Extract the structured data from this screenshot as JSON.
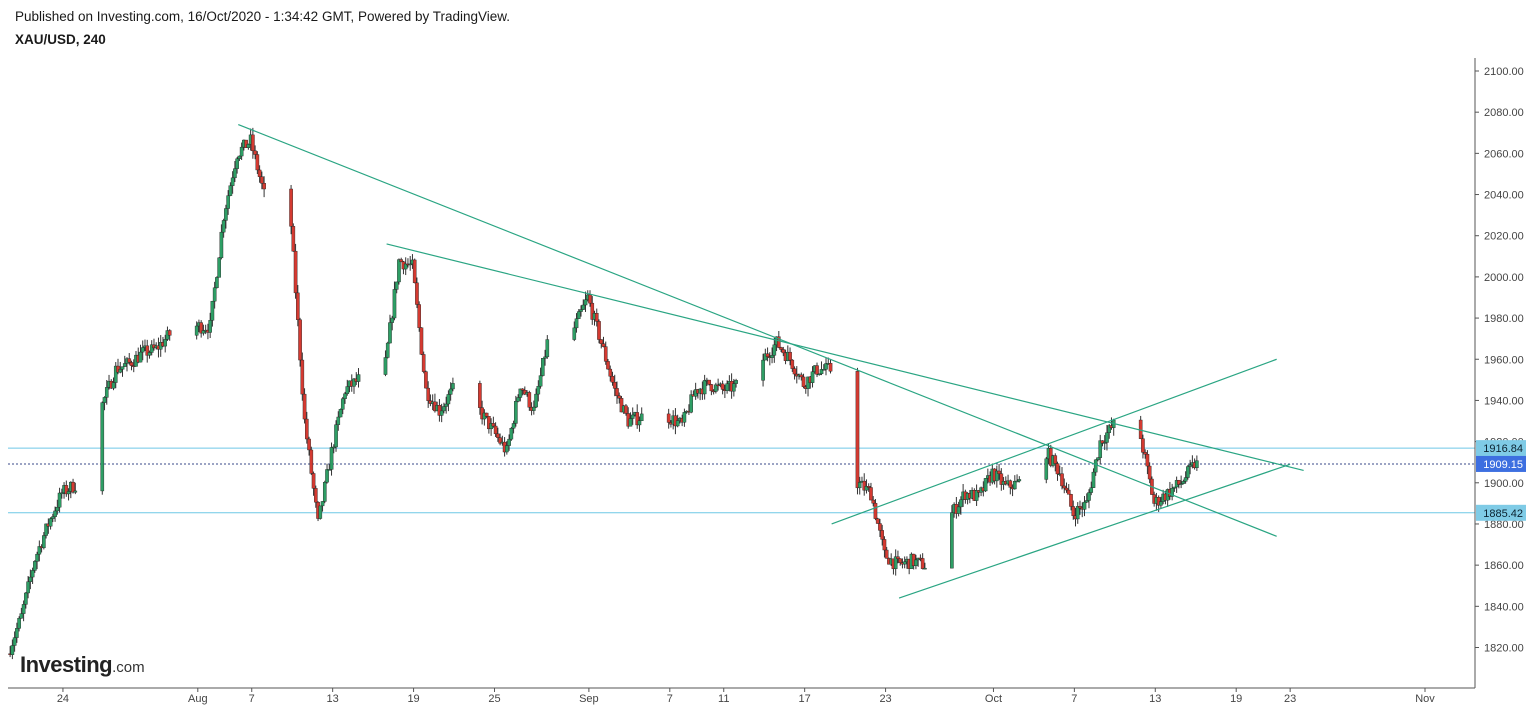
{
  "header": {
    "published_text": "Published on Investing.com, 16/Oct/2020 - 1:34:42 GMT, Powered by TradingView.",
    "symbol_label": "XAU/USD, 240"
  },
  "logo": {
    "brand": "Investing",
    "suffix": ".com"
  },
  "colors": {
    "up_candle": "#2e9e65",
    "down_candle": "#d43a31",
    "wick": "#333333",
    "trendline": "#2aa583",
    "horizontal_level": "#6fc8e6",
    "last_price_tag": "#3d6fe0",
    "level_tag": "#7fcbe6",
    "axis": "#555555"
  },
  "chart_data": {
    "type": "candlestick",
    "title": "XAU/USD, 240",
    "xlabel": "",
    "ylabel": "",
    "ylim": [
      1800,
      2105
    ],
    "x_range": [
      "2020-07-20",
      "2020-11-02"
    ],
    "y_ticks": [
      "1820.00",
      "1840.00",
      "1860.00",
      "1880.00",
      "1900.00",
      "1920.00",
      "1940.00",
      "1960.00",
      "1980.00",
      "2000.00",
      "2020.00",
      "2040.00",
      "2060.00",
      "2080.00",
      "2100.00"
    ],
    "x_ticks": [
      {
        "label": "24",
        "date": "2020-07-24"
      },
      {
        "label": "Aug",
        "date": "2020-08-03"
      },
      {
        "label": "7",
        "date": "2020-08-07"
      },
      {
        "label": "13",
        "date": "2020-08-13"
      },
      {
        "label": "19",
        "date": "2020-08-19"
      },
      {
        "label": "25",
        "date": "2020-08-25"
      },
      {
        "label": "Sep",
        "date": "2020-09-01"
      },
      {
        "label": "7",
        "date": "2020-09-07"
      },
      {
        "label": "11",
        "date": "2020-09-11"
      },
      {
        "label": "17",
        "date": "2020-09-17"
      },
      {
        "label": "23",
        "date": "2020-09-23"
      },
      {
        "label": "Oct",
        "date": "2020-10-01"
      },
      {
        "label": "7",
        "date": "2020-10-07"
      },
      {
        "label": "13",
        "date": "2020-10-13"
      },
      {
        "label": "19",
        "date": "2020-10-19"
      },
      {
        "label": "23",
        "date": "2020-10-23"
      },
      {
        "label": "Nov",
        "date": "2020-11-02"
      }
    ],
    "anchors": [
      [
        "2020-07-20",
        1817
      ],
      [
        "2020-07-21",
        1835
      ],
      [
        "2020-07-22",
        1863
      ],
      [
        "2020-07-23",
        1880
      ],
      [
        "2020-07-24",
        1895
      ],
      [
        "2020-07-25",
        1899
      ],
      [
        "2020-07-27",
        1938
      ],
      [
        "2020-07-28",
        1955
      ],
      [
        "2020-07-29",
        1958
      ],
      [
        "2020-07-30",
        1963
      ],
      [
        "2020-07-31",
        1965
      ],
      [
        "2020-08-01",
        1972
      ],
      [
        "2020-08-03",
        1976
      ],
      [
        "2020-08-04",
        1976
      ],
      [
        "2020-08-05",
        2030
      ],
      [
        "2020-08-06",
        2060
      ],
      [
        "2020-08-07",
        2066
      ],
      [
        "2020-08-08",
        2040
      ],
      [
        "2020-08-09",
        2032
      ],
      [
        "2020-08-10",
        2025
      ],
      [
        "2020-08-11",
        1930
      ],
      [
        "2020-08-12",
        1880
      ],
      [
        "2020-08-13",
        1915
      ],
      [
        "2020-08-14",
        1945
      ],
      [
        "2020-08-15",
        1950
      ],
      [
        "2020-08-17",
        1958
      ],
      [
        "2020-08-18",
        2008
      ],
      [
        "2020-08-19",
        2005
      ],
      [
        "2020-08-20",
        1945
      ],
      [
        "2020-08-21",
        1935
      ],
      [
        "2020-08-22",
        1945
      ],
      [
        "2020-08-24",
        1935
      ],
      [
        "2020-08-25",
        1925
      ],
      [
        "2020-08-26",
        1915
      ],
      [
        "2020-08-27",
        1948
      ],
      [
        "2020-08-28",
        1935
      ],
      [
        "2020-08-29",
        1968
      ],
      [
        "2020-08-31",
        1975
      ],
      [
        "2020-09-01",
        1990
      ],
      [
        "2020-09-02",
        1968
      ],
      [
        "2020-09-03",
        1945
      ],
      [
        "2020-09-04",
        1930
      ],
      [
        "2020-09-05",
        1932
      ],
      [
        "2020-09-07",
        1932
      ],
      [
        "2020-09-08",
        1928
      ],
      [
        "2020-09-09",
        1945
      ],
      [
        "2020-09-10",
        1948
      ],
      [
        "2020-09-11",
        1945
      ],
      [
        "2020-09-12",
        1947
      ],
      [
        "2020-09-14",
        1960
      ],
      [
        "2020-09-15",
        1968
      ],
      [
        "2020-09-16",
        1960
      ],
      [
        "2020-09-17",
        1948
      ],
      [
        "2020-09-18",
        1955
      ],
      [
        "2020-09-19",
        1955
      ],
      [
        "2020-09-21",
        1900
      ],
      [
        "2020-09-22",
        1895
      ],
      [
        "2020-09-23",
        1865
      ],
      [
        "2020-09-24",
        1860
      ],
      [
        "2020-09-25",
        1862
      ],
      [
        "2020-09-26",
        1860
      ],
      [
        "2020-09-28",
        1885
      ],
      [
        "2020-09-29",
        1895
      ],
      [
        "2020-09-30",
        1893
      ],
      [
        "2020-10-01",
        1905
      ],
      [
        "2020-10-02",
        1898
      ],
      [
        "2020-10-03",
        1900
      ],
      [
        "2020-10-05",
        1915
      ],
      [
        "2020-10-06",
        1905
      ],
      [
        "2020-10-07",
        1885
      ],
      [
        "2020-10-08",
        1890
      ],
      [
        "2020-10-09",
        1920
      ],
      [
        "2020-10-10",
        1928
      ],
      [
        "2020-10-12",
        1922
      ],
      [
        "2020-10-13",
        1890
      ],
      [
        "2020-10-14",
        1895
      ],
      [
        "2020-10-15",
        1900
      ],
      [
        "2020-10-16",
        1909
      ]
    ],
    "trendlines": [
      {
        "x1": "2020-08-06",
        "y1": 2074,
        "x2": "2020-10-22",
        "y2": 1874
      },
      {
        "x1": "2020-08-17",
        "y1": 2016,
        "x2": "2020-10-24",
        "y2": 1906
      },
      {
        "x1": "2020-09-19",
        "y1": 1880,
        "x2": "2020-10-22",
        "y2": 1960
      },
      {
        "x1": "2020-09-24",
        "y1": 1844,
        "x2": "2020-10-23",
        "y2": 1909
      }
    ],
    "horizontal_levels": [
      {
        "label": "1916.84",
        "value": 1916.84
      },
      {
        "label": "1885.42",
        "value": 1885.42
      }
    ],
    "last_price": {
      "label": "1909.15",
      "value": 1909.15
    }
  }
}
